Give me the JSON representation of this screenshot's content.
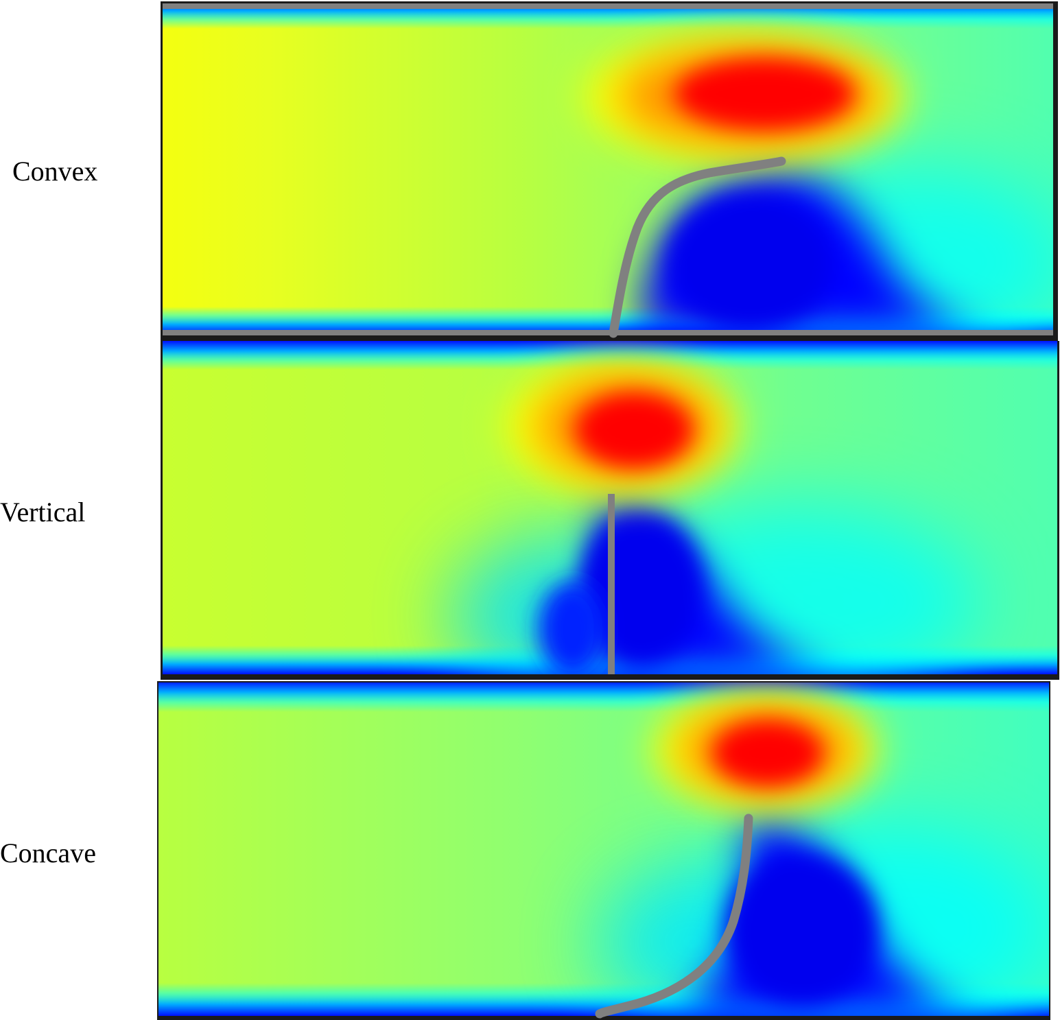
{
  "panels": [
    {
      "id": "convex",
      "label": "Convex",
      "flap_shape": "convex"
    },
    {
      "id": "vertical",
      "label": "Vertical",
      "flap_shape": "vertical"
    },
    {
      "id": "concave",
      "label": "Concave",
      "flap_shape": "concave"
    }
  ],
  "colormap": [
    "#00007f",
    "#0000ff",
    "#00ffff",
    "#7fff7f",
    "#ffff00",
    "#ff7f00",
    "#ff0000"
  ],
  "flap_color": "#808080",
  "wall_color": "#1a1a1a"
}
